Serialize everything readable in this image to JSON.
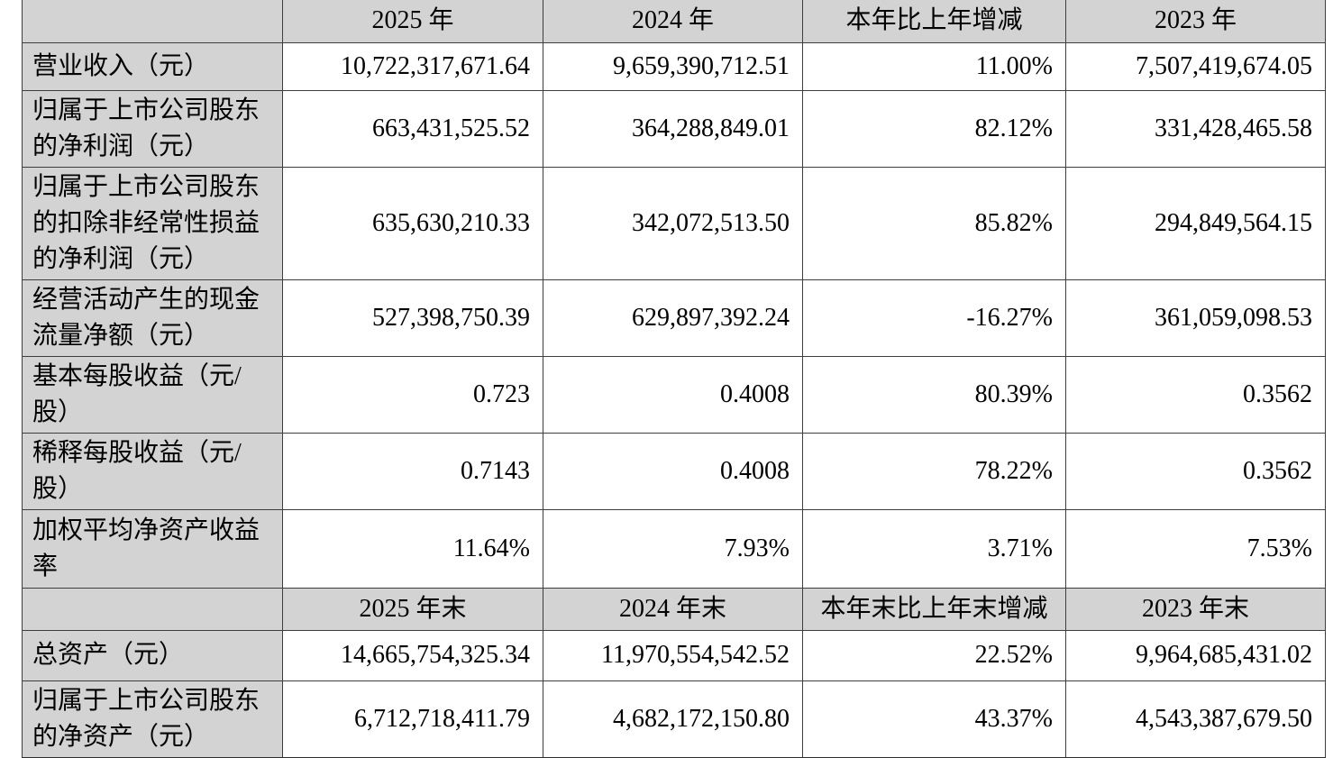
{
  "colors": {
    "header_bg": "#d3d3d3",
    "label_bg": "#d3d3d3",
    "border": "#3e3e3e",
    "text": "#000000",
    "page_bg": "#ffffff"
  },
  "table": {
    "columns": [
      "",
      "2025 年",
      "2024 年",
      "本年比上年增减",
      "2023 年"
    ],
    "rows": [
      {
        "label": "营业收入（元）",
        "y2025": "10,722,317,671.64",
        "y2024": "9,659,390,712.51",
        "change": "11.00%",
        "y2023": "7,507,419,674.05"
      },
      {
        "label": "归属于上市公司股东的净利润（元）",
        "y2025": "663,431,525.52",
        "y2024": "364,288,849.01",
        "change": "82.12%",
        "y2023": "331,428,465.58"
      },
      {
        "label": "归属于上市公司股东的扣除非经常性损益的净利润（元）",
        "y2025": "635,630,210.33",
        "y2024": "342,072,513.50",
        "change": "85.82%",
        "y2023": "294,849,564.15"
      },
      {
        "label": "经营活动产生的现金流量净额（元）",
        "y2025": "527,398,750.39",
        "y2024": "629,897,392.24",
        "change": "-16.27%",
        "y2023": "361,059,098.53"
      },
      {
        "label": "基本每股收益（元/股）",
        "y2025": "0.723",
        "y2024": "0.4008",
        "change": "80.39%",
        "y2023": "0.3562"
      },
      {
        "label": "稀释每股收益（元/股）",
        "y2025": "0.7143",
        "y2024": "0.4008",
        "change": "78.22%",
        "y2023": "0.3562"
      },
      {
        "label": "加权平均净资产收益率",
        "y2025": "11.64%",
        "y2024": "7.93%",
        "change": "3.71%",
        "y2023": "7.53%"
      }
    ],
    "columns_end": [
      "",
      "2025 年末",
      "2024 年末",
      "本年末比上年末增减",
      "2023 年末"
    ],
    "rows_end": [
      {
        "label": "总资产（元）",
        "y2025": "14,665,754,325.34",
        "y2024": "11,970,554,542.52",
        "change": "22.52%",
        "y2023": "9,964,685,431.02"
      },
      {
        "label": "归属于上市公司股东的净资产（元）",
        "y2025": "6,712,718,411.79",
        "y2024": "4,682,172,150.80",
        "change": "43.37%",
        "y2023": "4,543,387,679.50"
      }
    ]
  }
}
